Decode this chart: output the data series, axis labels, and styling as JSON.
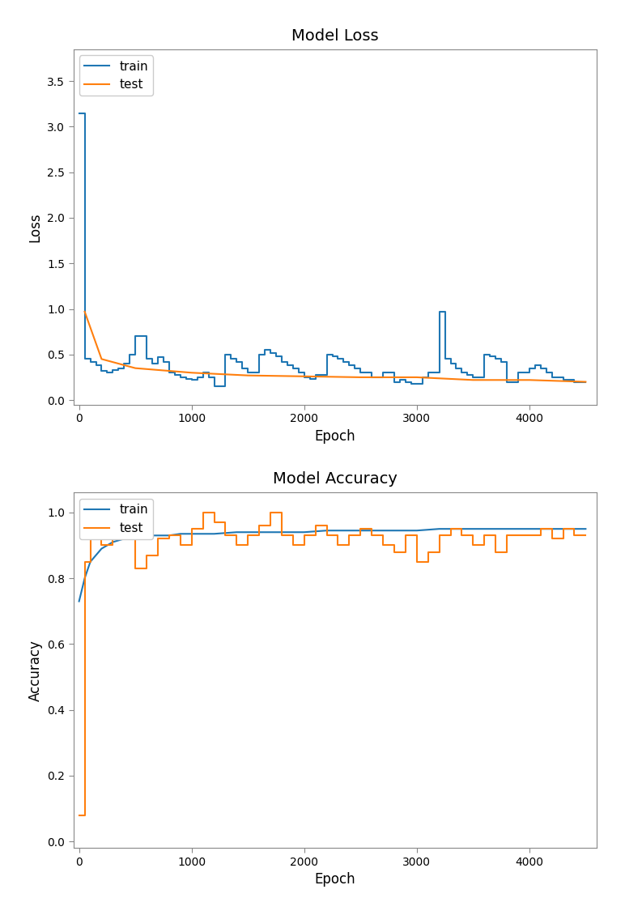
{
  "title1": "Model Loss",
  "title2": "Model Accuracy",
  "xlabel": "Epoch",
  "ylabel1": "Loss",
  "ylabel2": "Accuracy",
  "train_color": "#1f77b4",
  "test_color": "#ff7f0e",
  "figsize": [
    7.72,
    11.3
  ],
  "dpi": 100,
  "loss_xlim": [
    -50,
    4600
  ],
  "loss_ylim": [
    -0.05,
    3.85
  ],
  "acc_xlim": [
    -50,
    4600
  ],
  "acc_ylim": [
    -0.02,
    1.06
  ],
  "loss_yticks": [
    0.0,
    0.5,
    1.0,
    1.5,
    2.0,
    2.5,
    3.0,
    3.5
  ],
  "acc_yticks": [
    0.0,
    0.2,
    0.4,
    0.6,
    0.8,
    1.0
  ],
  "xticks": [
    0,
    1000,
    2000,
    3000,
    4000
  ],
  "legend_loc": "upper left",
  "background_color": "#ffffff",
  "loss_train_epochs": [
    0,
    50,
    100,
    150,
    200,
    250,
    300,
    350,
    400,
    450,
    500,
    600,
    650,
    700,
    750,
    800,
    850,
    900,
    950,
    1000,
    1050,
    1100,
    1150,
    1200,
    1300,
    1350,
    1400,
    1450,
    1500,
    1600,
    1650,
    1700,
    1750,
    1800,
    1850,
    1900,
    1950,
    2000,
    2050,
    2100,
    2200,
    2250,
    2300,
    2350,
    2400,
    2450,
    2500,
    2600,
    2700,
    2800,
    2850,
    2900,
    2950,
    3000,
    3050,
    3100,
    3200,
    3250,
    3300,
    3350,
    3400,
    3450,
    3500,
    3600,
    3650,
    3700,
    3750,
    3800,
    3900,
    4000,
    4050,
    4100,
    4150,
    4200,
    4300,
    4400,
    4500
  ],
  "loss_train_values": [
    3.15,
    0.45,
    0.42,
    0.38,
    0.32,
    0.3,
    0.33,
    0.35,
    0.4,
    0.5,
    0.7,
    0.45,
    0.4,
    0.47,
    0.42,
    0.3,
    0.28,
    0.25,
    0.23,
    0.22,
    0.25,
    0.3,
    0.25,
    0.15,
    0.5,
    0.45,
    0.42,
    0.35,
    0.3,
    0.5,
    0.55,
    0.52,
    0.48,
    0.42,
    0.38,
    0.35,
    0.3,
    0.25,
    0.23,
    0.28,
    0.5,
    0.48,
    0.45,
    0.42,
    0.38,
    0.35,
    0.3,
    0.25,
    0.3,
    0.2,
    0.22,
    0.2,
    0.18,
    0.18,
    0.25,
    0.3,
    0.97,
    0.45,
    0.4,
    0.35,
    0.3,
    0.28,
    0.25,
    0.5,
    0.48,
    0.45,
    0.42,
    0.2,
    0.3,
    0.35,
    0.38,
    0.35,
    0.3,
    0.25,
    0.22,
    0.2,
    0.2
  ],
  "loss_test_epochs": [
    50,
    200,
    500,
    1000,
    1500,
    2000,
    2500,
    3000,
    3500,
    4000,
    4500
  ],
  "loss_test_values": [
    0.97,
    0.45,
    0.35,
    0.3,
    0.27,
    0.26,
    0.25,
    0.25,
    0.22,
    0.22,
    0.2
  ],
  "acc_train_epochs": [
    0,
    50,
    100,
    200,
    300,
    400,
    500,
    600,
    700,
    800,
    900,
    1000,
    1200,
    1400,
    1600,
    1800,
    2000,
    2200,
    2400,
    2600,
    2800,
    3000,
    3200,
    3400,
    3600,
    3800,
    4000,
    4200,
    4400,
    4500
  ],
  "acc_train_values": [
    0.73,
    0.8,
    0.85,
    0.89,
    0.91,
    0.92,
    0.92,
    0.93,
    0.93,
    0.93,
    0.935,
    0.935,
    0.935,
    0.94,
    0.94,
    0.94,
    0.94,
    0.945,
    0.945,
    0.945,
    0.945,
    0.945,
    0.95,
    0.95,
    0.95,
    0.95,
    0.95,
    0.95,
    0.95,
    0.95
  ],
  "acc_test_epochs": [
    0,
    50,
    100,
    200,
    300,
    400,
    500,
    600,
    700,
    800,
    900,
    1000,
    1100,
    1200,
    1300,
    1400,
    1500,
    1600,
    1700,
    1800,
    1900,
    2000,
    2100,
    2200,
    2300,
    2400,
    2500,
    2600,
    2700,
    2800,
    2900,
    3000,
    3100,
    3200,
    3300,
    3400,
    3500,
    3600,
    3700,
    3800,
    3900,
    4000,
    4100,
    4200,
    4300,
    4400,
    4500
  ],
  "acc_test_values": [
    0.08,
    0.85,
    0.92,
    0.9,
    0.96,
    1.0,
    0.83,
    0.87,
    0.92,
    0.93,
    0.9,
    0.95,
    1.0,
    0.97,
    0.93,
    0.9,
    0.93,
    0.96,
    1.0,
    0.93,
    0.9,
    0.93,
    0.96,
    0.93,
    0.9,
    0.93,
    0.95,
    0.93,
    0.9,
    0.88,
    0.93,
    0.85,
    0.88,
    0.93,
    0.95,
    0.93,
    0.9,
    0.93,
    0.88,
    0.93,
    0.93,
    0.93,
    0.95,
    0.92,
    0.95,
    0.93,
    0.93
  ]
}
